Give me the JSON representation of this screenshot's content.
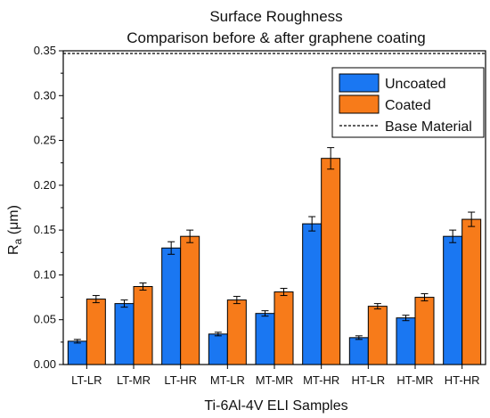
{
  "chart_data": {
    "type": "bar",
    "title": "Surface Roughness",
    "subtitle": "Comparison before & after graphene coating",
    "xlabel": "Ti-6Al-4V ELI Samples",
    "ylabel": {
      "main": "R",
      "sub": "a",
      "rest": " (μm)"
    },
    "ylim": [
      0,
      0.35
    ],
    "yticks": [
      "0.00",
      "0.05",
      "0.10",
      "0.15",
      "0.20",
      "0.25",
      "0.30",
      "0.35"
    ],
    "grid": false,
    "legend_position": "top-right",
    "categories": [
      "LT-LR",
      "LT-MR",
      "LT-HR",
      "MT-LR",
      "MT-MR",
      "MT-HR",
      "HT-LR",
      "HT-MR",
      "HT-HR"
    ],
    "series": [
      {
        "name": "Uncoated",
        "color": "#1a77f2",
        "values": [
          0.026,
          0.068,
          0.13,
          0.034,
          0.057,
          0.157,
          0.03,
          0.052,
          0.143
        ],
        "errors": [
          0.002,
          0.004,
          0.007,
          0.002,
          0.003,
          0.008,
          0.002,
          0.003,
          0.007
        ]
      },
      {
        "name": "Coated",
        "color": "#f77b1a",
        "values": [
          0.073,
          0.087,
          0.143,
          0.072,
          0.081,
          0.23,
          0.065,
          0.075,
          0.162
        ],
        "errors": [
          0.004,
          0.004,
          0.007,
          0.004,
          0.004,
          0.012,
          0.003,
          0.004,
          0.008
        ]
      }
    ],
    "reference_line": {
      "name": "Base Material",
      "value": 0.347,
      "style": "dashed"
    }
  }
}
